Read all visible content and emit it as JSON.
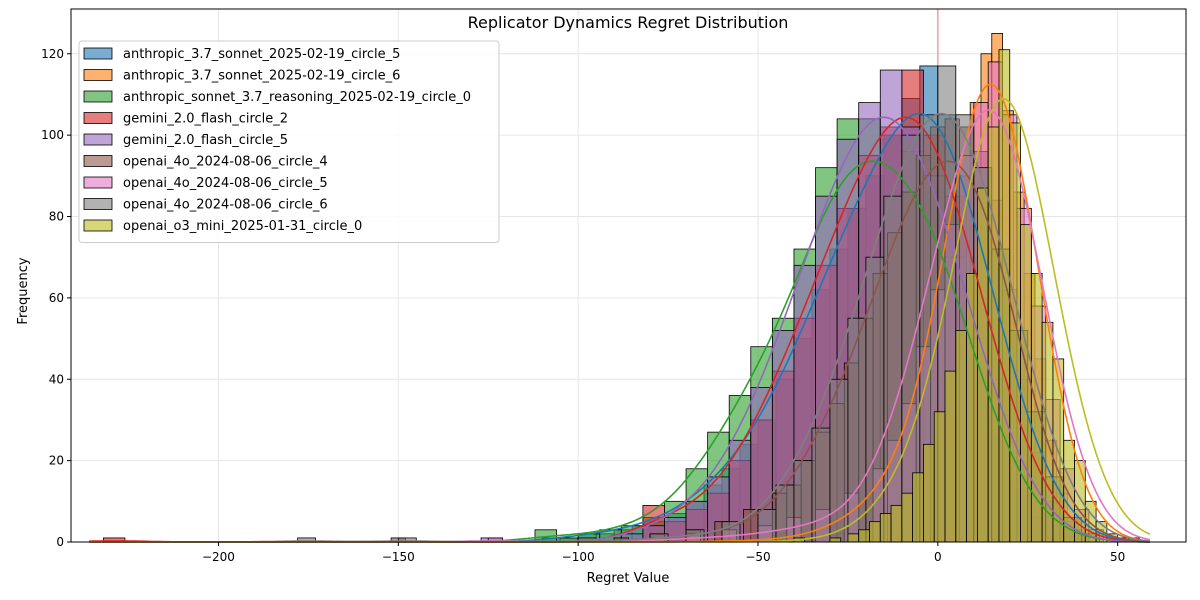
{
  "chart_data": {
    "type": "bar",
    "title": "Replicator Dynamics Regret Distribution",
    "xlabel": "Regret Value",
    "ylabel": "Frequency",
    "xlim": [
      -241,
      69
    ],
    "ylim": [
      0,
      131
    ],
    "xticks": [
      -200,
      -150,
      -100,
      -50,
      0,
      50
    ],
    "yticks": [
      0,
      20,
      40,
      60,
      80,
      100,
      120
    ],
    "grid": true,
    "legend_position": "top-left",
    "reference_line": {
      "x": 0,
      "color": "#f4a0a0"
    },
    "series": [
      {
        "name": "anthropic_3.7_sonnet_2025-02-19_circle_5",
        "color": "#1f77b4",
        "bin_width": 5,
        "bins": [
          [
            -110,
            1
          ],
          [
            -105,
            1
          ],
          [
            -100,
            2
          ],
          [
            -95,
            2
          ],
          [
            -90,
            3
          ],
          [
            -85,
            4
          ],
          [
            -80,
            5
          ],
          [
            -75,
            7
          ],
          [
            -70,
            10
          ],
          [
            -65,
            14
          ],
          [
            -60,
            18
          ],
          [
            -55,
            24
          ],
          [
            -50,
            30
          ],
          [
            -45,
            40
          ],
          [
            -40,
            50
          ],
          [
            -35,
            62
          ],
          [
            -30,
            72
          ],
          [
            -25,
            82
          ],
          [
            -20,
            90
          ],
          [
            -15,
            100
          ],
          [
            -10,
            109
          ],
          [
            -5,
            117
          ],
          [
            0,
            105
          ],
          [
            5,
            90
          ],
          [
            10,
            70
          ],
          [
            15,
            50
          ],
          [
            20,
            32
          ],
          [
            25,
            18
          ],
          [
            30,
            8
          ],
          [
            35,
            3
          ]
        ]
      },
      {
        "name": "anthropic_3.7_sonnet_2025-02-19_circle_6",
        "color": "#ff7f0e",
        "bin_width": 3,
        "bins": [
          [
            -60,
            1
          ],
          [
            -45,
            2
          ],
          [
            -35,
            3
          ],
          [
            -30,
            5
          ],
          [
            -25,
            8
          ],
          [
            -20,
            12
          ],
          [
            -15,
            18
          ],
          [
            -10,
            28
          ],
          [
            -5,
            40
          ],
          [
            0,
            58
          ],
          [
            3,
            70
          ],
          [
            6,
            90
          ],
          [
            9,
            108
          ],
          [
            12,
            120
          ],
          [
            15,
            125
          ],
          [
            18,
            106
          ],
          [
            21,
            86
          ],
          [
            24,
            66
          ],
          [
            27,
            45
          ],
          [
            30,
            25
          ],
          [
            33,
            12
          ],
          [
            36,
            6
          ],
          [
            39,
            3
          ]
        ]
      },
      {
        "name": "anthropic_sonnet_3.7_reasoning_2025-02-19_circle_0",
        "color": "#2ca02c",
        "bin_width": 6,
        "bins": [
          [
            -112,
            3
          ],
          [
            -106,
            1
          ],
          [
            -100,
            2
          ],
          [
            -94,
            3
          ],
          [
            -88,
            4
          ],
          [
            -82,
            6
          ],
          [
            -76,
            10
          ],
          [
            -70,
            18
          ],
          [
            -64,
            27
          ],
          [
            -58,
            36
          ],
          [
            -52,
            48
          ],
          [
            -46,
            55
          ],
          [
            -40,
            72
          ],
          [
            -34,
            92
          ],
          [
            -28,
            104
          ],
          [
            -22,
            104
          ],
          [
            -16,
            100
          ],
          [
            -10,
            96
          ],
          [
            -4,
            86
          ],
          [
            2,
            66
          ],
          [
            8,
            44
          ],
          [
            14,
            26
          ],
          [
            20,
            12
          ],
          [
            26,
            5
          ],
          [
            32,
            2
          ]
        ]
      },
      {
        "name": "gemini_2.0_flash_circle_2",
        "color": "#d62728",
        "bin_width": 6,
        "bins": [
          [
            -232,
            1
          ],
          [
            -82,
            9
          ],
          [
            -76,
            5
          ],
          [
            -70,
            8
          ],
          [
            -64,
            12
          ],
          [
            -58,
            20
          ],
          [
            -52,
            30
          ],
          [
            -46,
            42
          ],
          [
            -40,
            55
          ],
          [
            -34,
            68
          ],
          [
            -28,
            82
          ],
          [
            -22,
            95
          ],
          [
            -16,
            102
          ],
          [
            -10,
            116
          ],
          [
            -4,
            100
          ],
          [
            2,
            85
          ],
          [
            8,
            62
          ],
          [
            14,
            40
          ],
          [
            20,
            22
          ],
          [
            26,
            10
          ],
          [
            32,
            4
          ]
        ]
      },
      {
        "name": "gemini_2.0_flash_circle_5",
        "color": "#9467bd",
        "bin_width": 6,
        "bins": [
          [
            -127,
            1
          ],
          [
            -88,
            2
          ],
          [
            -82,
            4
          ],
          [
            -76,
            6
          ],
          [
            -70,
            10
          ],
          [
            -64,
            16
          ],
          [
            -58,
            25
          ],
          [
            -52,
            38
          ],
          [
            -46,
            52
          ],
          [
            -40,
            68
          ],
          [
            -34,
            85
          ],
          [
            -28,
            99
          ],
          [
            -22,
            108
          ],
          [
            -16,
            116
          ],
          [
            -10,
            102
          ],
          [
            -4,
            90
          ],
          [
            2,
            70
          ],
          [
            8,
            50
          ],
          [
            14,
            30
          ],
          [
            20,
            15
          ],
          [
            26,
            6
          ],
          [
            32,
            2
          ]
        ]
      },
      {
        "name": "openai_4o_2024-08-06_circle_4",
        "color": "#8c564b",
        "bin_width": 4,
        "bins": [
          [
            -152,
            1
          ],
          [
            -90,
            1
          ],
          [
            -80,
            2
          ],
          [
            -70,
            3
          ],
          [
            -62,
            5
          ],
          [
            -54,
            8
          ],
          [
            -46,
            12
          ],
          [
            -42,
            14
          ],
          [
            -38,
            20
          ],
          [
            -34,
            27
          ],
          [
            -30,
            34
          ],
          [
            -26,
            44
          ],
          [
            -22,
            55
          ],
          [
            -18,
            66
          ],
          [
            -14,
            76
          ],
          [
            -10,
            86
          ],
          [
            -6,
            95
          ],
          [
            -2,
            102
          ],
          [
            2,
            104
          ],
          [
            6,
            102
          ],
          [
            10,
            96
          ],
          [
            14,
            84
          ],
          [
            18,
            62
          ],
          [
            22,
            40
          ],
          [
            26,
            22
          ],
          [
            30,
            10
          ],
          [
            34,
            5
          ],
          [
            38,
            2
          ]
        ]
      },
      {
        "name": "openai_4o_2024-08-06_circle_5",
        "color": "#e377c2",
        "bin_width": 4,
        "bins": [
          [
            -125,
            1
          ],
          [
            -80,
            1
          ],
          [
            -70,
            2
          ],
          [
            -60,
            3
          ],
          [
            -50,
            4
          ],
          [
            -42,
            6
          ],
          [
            -34,
            8
          ],
          [
            -26,
            12
          ],
          [
            -18,
            18
          ],
          [
            -14,
            25
          ],
          [
            -10,
            34
          ],
          [
            -6,
            48
          ],
          [
            -2,
            62
          ],
          [
            2,
            78
          ],
          [
            6,
            95
          ],
          [
            10,
            108
          ],
          [
            14,
            118
          ],
          [
            18,
            105
          ],
          [
            22,
            82
          ],
          [
            26,
            58
          ],
          [
            30,
            35
          ],
          [
            34,
            18
          ],
          [
            38,
            8
          ],
          [
            42,
            3
          ]
        ]
      },
      {
        "name": "openai_4o_2024-08-06_circle_6",
        "color": "#7f7f7f",
        "bin_width": 5,
        "bins": [
          [
            -178,
            1
          ],
          [
            -150,
            1
          ],
          [
            -100,
            1
          ],
          [
            -80,
            2
          ],
          [
            -70,
            3
          ],
          [
            -60,
            5
          ],
          [
            -50,
            8
          ],
          [
            -45,
            14
          ],
          [
            -40,
            20
          ],
          [
            -35,
            28
          ],
          [
            -30,
            40
          ],
          [
            -25,
            55
          ],
          [
            -20,
            70
          ],
          [
            -15,
            85
          ],
          [
            -10,
            100
          ],
          [
            -5,
            105
          ],
          [
            0,
            117
          ],
          [
            5,
            105
          ],
          [
            10,
            92
          ],
          [
            15,
            72
          ],
          [
            20,
            52
          ],
          [
            25,
            32
          ],
          [
            30,
            16
          ],
          [
            35,
            6
          ],
          [
            40,
            2
          ]
        ]
      },
      {
        "name": "openai_o3_mini_2025-01-31_circle_0",
        "color": "#bcbd22",
        "bin_width": 3,
        "bins": [
          [
            -40,
            1
          ],
          [
            -30,
            1
          ],
          [
            -25,
            2
          ],
          [
            -22,
            3
          ],
          [
            -19,
            5
          ],
          [
            -16,
            7
          ],
          [
            -13,
            9
          ],
          [
            -10,
            12
          ],
          [
            -7,
            17
          ],
          [
            -4,
            24
          ],
          [
            -1,
            32
          ],
          [
            2,
            42
          ],
          [
            5,
            52
          ],
          [
            8,
            66
          ],
          [
            11,
            87
          ],
          [
            14,
            102
          ],
          [
            17,
            121
          ],
          [
            20,
            103
          ],
          [
            23,
            78
          ],
          [
            26,
            66
          ],
          [
            29,
            54
          ],
          [
            32,
            45
          ],
          [
            35,
            25
          ],
          [
            38,
            20
          ],
          [
            41,
            10
          ],
          [
            44,
            5
          ],
          [
            47,
            2
          ],
          [
            50,
            1
          ],
          [
            53,
            1
          ]
        ]
      }
    ]
  }
}
